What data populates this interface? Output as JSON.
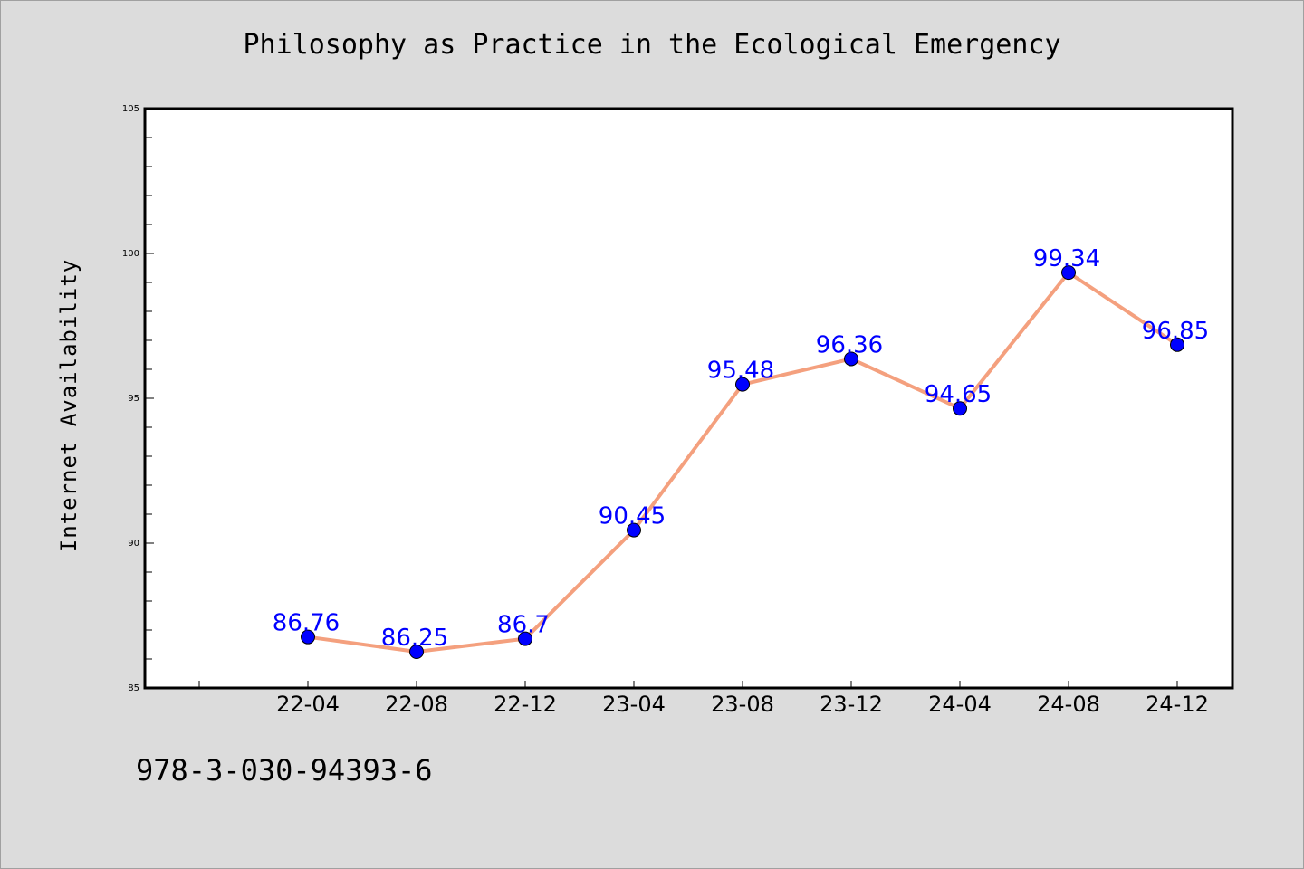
{
  "title": "Philosophy as Practice in the Ecological Emergency",
  "footer_text": "978-3-030-94393-6",
  "colors": {
    "background": "#dcdcdc",
    "plot_background": "#ffffff",
    "line": "#f4a07e",
    "marker": "#0000ff",
    "data_label": "#0000ff"
  },
  "chart_data": {
    "type": "line",
    "ylabel": "Internet Availability",
    "xlabel": "",
    "categories": [
      "22-04",
      "22-08",
      "22-12",
      "23-04",
      "23-08",
      "23-12",
      "24-04",
      "24-08",
      "24-12"
    ],
    "series": [
      {
        "values": [
          86.76,
          86.25,
          86.7,
          90.45,
          95.48,
          96.36,
          94.65,
          99.34,
          96.85
        ],
        "labels": [
          "86.76",
          "86.25",
          "86.7",
          "90.45",
          "95.48",
          "96.36",
          "94.65",
          "99.34",
          "96.85"
        ]
      }
    ],
    "ylim": [
      85,
      105
    ],
    "yticks": [
      "85",
      "90",
      "95",
      "100",
      "105"
    ],
    "grid": false,
    "legend": "none"
  }
}
